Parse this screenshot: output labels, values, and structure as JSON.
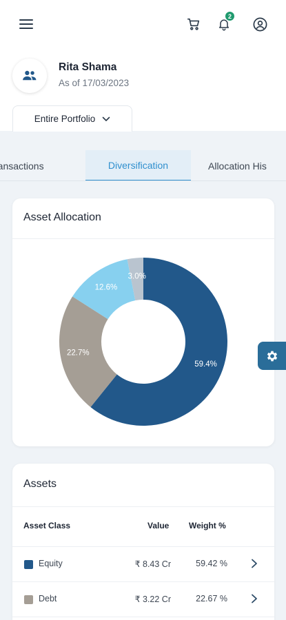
{
  "header": {
    "icons": [
      "menu-icon",
      "cart-icon",
      "bell-icon",
      "profile-icon"
    ],
    "notification_count": "2"
  },
  "user": {
    "name": "Rita Shama",
    "as_of": "As of 17/03/2023",
    "avatar_icon": "people-icon"
  },
  "portfolio_selector": {
    "label": "Entire Portfolio"
  },
  "tabs": [
    {
      "label": "ransactions"
    },
    {
      "label": "Diversification",
      "active": true
    },
    {
      "label": "Allocation His"
    }
  ],
  "asset_allocation": {
    "title": "Asset Allocation",
    "chart_data": {
      "type": "pie",
      "donut": true,
      "categories": [
        "Equity",
        "Debt",
        "",
        ""
      ],
      "values": [
        59.4,
        22.7,
        12.6,
        3.0
      ],
      "labels": [
        "59.4%",
        "22.7%",
        "12.6%",
        "3.0%"
      ],
      "colors": [
        "#22588a",
        "#a59e95",
        "#87d0ef",
        "#b9c4cf"
      ],
      "title": "Asset Allocation"
    }
  },
  "assets": {
    "title": "Assets",
    "columns": {
      "asset_class": "Asset Class",
      "value": "Value",
      "weight": "Weight %"
    },
    "rows": [
      {
        "name": "Equity",
        "value": "₹ 8.43 Cr",
        "weight": "59.42 %",
        "color": "#22588a"
      },
      {
        "name": "Debt",
        "value": "₹ 3.22 Cr",
        "weight": "22.67 %",
        "color": "#a59e95"
      }
    ]
  },
  "colors": {
    "accent": "#2f8fce",
    "primary_dark": "#2a6d99",
    "badge": "#1f9a6e",
    "background": "#eff3f7"
  }
}
